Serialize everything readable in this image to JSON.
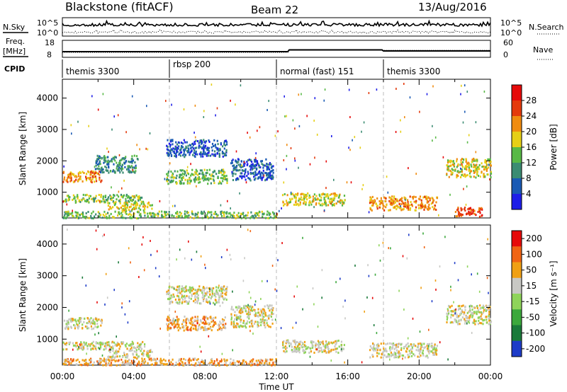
{
  "header": {
    "station": "Blackstone (fitACF)",
    "beam": "Beam 22",
    "date": "13/Aug/2016"
  },
  "summary": {
    "nsky_label": "N.Sky",
    "nsearch_label": "N.Search",
    "nsky_ticks": [
      "10^5",
      "10^0"
    ],
    "nsearch_ticks": [
      "10^5",
      "10^0"
    ],
    "freq_label": "Freq.",
    "freq_unit": "[MHz]",
    "freq_ticks": [
      "18",
      "8"
    ],
    "nave_label": "Nave",
    "nave_ticks": [
      "60",
      "0"
    ],
    "cpid_label": "CPID",
    "cpid_segments": [
      {
        "label": "themis 3300",
        "start": 0,
        "end": 6
      },
      {
        "label": "rbsp 200",
        "start": 6,
        "end": 12
      },
      {
        "label": "normal (fast) 151",
        "start": 12,
        "end": 18
      },
      {
        "label": "themis 3300",
        "start": 18,
        "end": 24
      }
    ]
  },
  "chart_data": [
    {
      "type": "heatmap",
      "name": "power",
      "ylabel": "Slant Range [km]",
      "xlim": [
        0,
        24
      ],
      "ylim": [
        180,
        4600
      ],
      "yticks": [
        "1000",
        "2000",
        "3000",
        "4000"
      ],
      "ytick_values": [
        1000,
        2000,
        3000,
        4000
      ],
      "colorbar": {
        "label": "Power [dB]",
        "ticks": [
          "4",
          "8",
          "12",
          "16",
          "20",
          "24",
          "28"
        ],
        "colors": [
          "#1e1ee8",
          "#1a5ab4",
          "#3b8c72",
          "#58b946",
          "#e6cf16",
          "#f08c10",
          "#e43a0c",
          "#e60a0a"
        ]
      },
      "regions": [
        {
          "t0": 0.0,
          "t1": 2.2,
          "r0": 1350,
          "r1": 1700,
          "level": 5
        },
        {
          "t0": 0.0,
          "t1": 4.6,
          "r0": 700,
          "r1": 950,
          "level": 3
        },
        {
          "t0": 1.8,
          "t1": 4.2,
          "r0": 1650,
          "r1": 2200,
          "level": 2
        },
        {
          "t0": 2.5,
          "t1": 5.0,
          "r0": 450,
          "r1": 700,
          "level": 4
        },
        {
          "t0": 0.0,
          "t1": 12.0,
          "r0": 200,
          "r1": 420,
          "level": 3
        },
        {
          "t0": 5.8,
          "t1": 9.2,
          "r0": 1300,
          "r1": 1750,
          "level": 3
        },
        {
          "t0": 5.8,
          "t1": 9.2,
          "r0": 2150,
          "r1": 2700,
          "level": 1
        },
        {
          "t0": 9.4,
          "t1": 11.8,
          "r0": 1400,
          "r1": 2100,
          "level": 1
        },
        {
          "t0": 12.3,
          "t1": 15.8,
          "r0": 600,
          "r1": 1000,
          "level": 4
        },
        {
          "t0": 17.2,
          "t1": 21.0,
          "r0": 450,
          "r1": 900,
          "level": 5
        },
        {
          "t0": 21.5,
          "t1": 24.0,
          "r0": 1500,
          "r1": 2100,
          "level": 4
        },
        {
          "t0": 22.0,
          "t1": 23.5,
          "r0": 250,
          "r1": 550,
          "level": 6
        }
      ]
    },
    {
      "type": "heatmap",
      "name": "velocity",
      "ylabel": "Slant Range [km]",
      "xlabel": "Time UT",
      "xlim": [
        0,
        24
      ],
      "ylim": [
        180,
        4600
      ],
      "xticks": [
        "00:00",
        "04:00",
        "08:00",
        "12:00",
        "16:00",
        "20:00",
        "00:00"
      ],
      "xtick_values": [
        0,
        4,
        8,
        12,
        16,
        20,
        24
      ],
      "yticks": [
        "1000",
        "2000",
        "3000",
        "4000"
      ],
      "ytick_values": [
        1000,
        2000,
        3000,
        4000
      ],
      "colorbar": {
        "label": "Velocity [m s⁻¹]",
        "ticks": [
          "200",
          "100",
          "50",
          "15",
          "-15",
          "-50",
          "-100",
          "-200"
        ],
        "colors": [
          "#1e3cc8",
          "#1a7a3a",
          "#3ca83c",
          "#8fd45a",
          "#c8c8c4",
          "#f0a014",
          "#f06414",
          "#e60a0a"
        ]
      },
      "regions": [
        {
          "t0": 0.0,
          "t1": 2.2,
          "r0": 1350,
          "r1": 1700,
          "level": 4
        },
        {
          "t0": 0.0,
          "t1": 4.6,
          "r0": 700,
          "r1": 950,
          "level": 4
        },
        {
          "t0": 2.5,
          "t1": 5.0,
          "r0": 450,
          "r1": 700,
          "level": 4
        },
        {
          "t0": 0.0,
          "t1": 12.0,
          "r0": 200,
          "r1": 420,
          "level": 5
        },
        {
          "t0": 5.8,
          "t1": 9.2,
          "r0": 1300,
          "r1": 1750,
          "level": 5
        },
        {
          "t0": 5.8,
          "t1": 9.2,
          "r0": 2150,
          "r1": 2700,
          "level": 4
        },
        {
          "t0": 9.4,
          "t1": 11.8,
          "r0": 1400,
          "r1": 2100,
          "level": 4
        },
        {
          "t0": 12.3,
          "t1": 15.8,
          "r0": 600,
          "r1": 1000,
          "level": 4
        },
        {
          "t0": 17.2,
          "t1": 21.0,
          "r0": 450,
          "r1": 900,
          "level": 4
        },
        {
          "t0": 21.5,
          "t1": 24.0,
          "r0": 1500,
          "r1": 2100,
          "level": 4
        }
      ]
    }
  ]
}
